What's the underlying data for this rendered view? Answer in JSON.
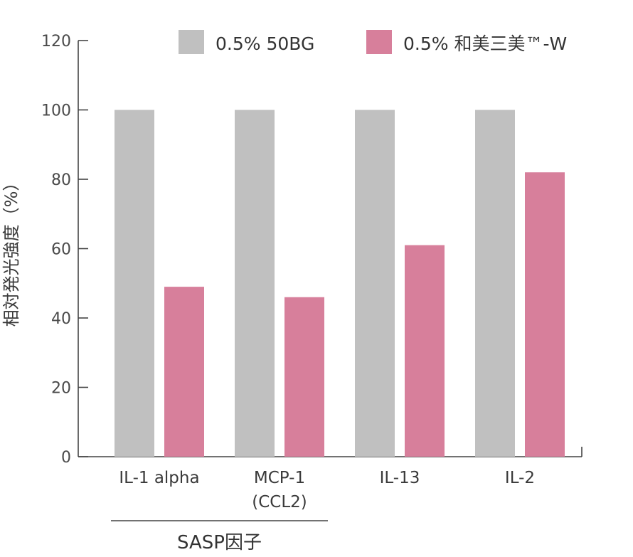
{
  "chart_data": {
    "type": "bar",
    "title": "",
    "xlabel": "",
    "ylabel": "相対発光強度（%）",
    "ylim": [
      0,
      120
    ],
    "yticks": [
      0,
      20,
      40,
      60,
      80,
      100,
      120
    ],
    "grid": false,
    "legend_position": "top-right",
    "categories": [
      [
        "IL-1 alpha"
      ],
      [
        "MCP-1",
        "(CCL2)"
      ],
      [
        "IL-13"
      ],
      [
        "IL-2"
      ]
    ],
    "series": [
      {
        "name": "0.5% 50BG",
        "color": "#c0c0c0",
        "values": [
          100,
          100,
          100,
          100
        ]
      },
      {
        "name": "0.5% 和美三美™-W",
        "color": "#d77f9b",
        "values": [
          49,
          46,
          61,
          82
        ]
      }
    ],
    "group_annotation": {
      "label": "SASP因子",
      "spans_categories": [
        0,
        1
      ]
    }
  }
}
